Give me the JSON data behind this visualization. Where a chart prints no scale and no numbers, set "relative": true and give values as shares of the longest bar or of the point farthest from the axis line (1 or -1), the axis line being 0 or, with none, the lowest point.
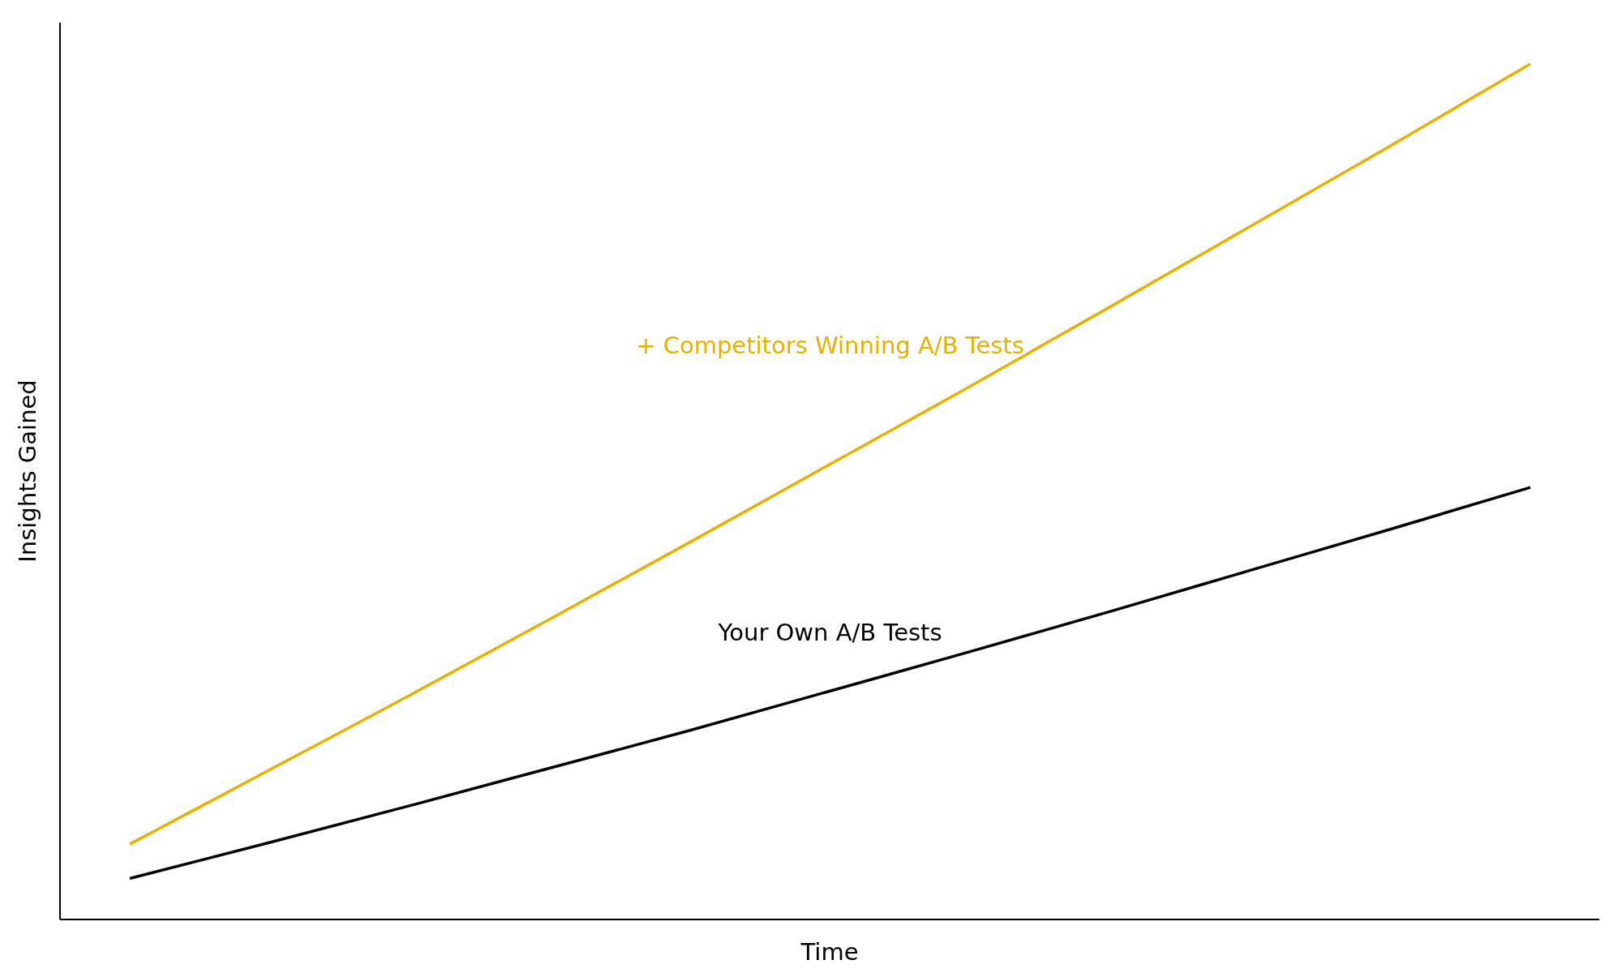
{
  "chart_data": {
    "type": "line",
    "relative": true,
    "xlabel": "Time",
    "ylabel": "Insights Gained",
    "categories": [
      null,
      null,
      null,
      null,
      null,
      null,
      null,
      null,
      null,
      null,
      null
    ],
    "series": [
      {
        "name": "+ Competitors Winning A/B Tests",
        "color": "#e8b000",
        "values": [
          0.088,
          0.175,
          0.262,
          0.351,
          0.441,
          0.532,
          0.623,
          0.716,
          0.81,
          0.904,
          1
        ]
      },
      {
        "name": "Your Own A/B Tests",
        "color": "#000000",
        "values": [
          0.048,
          0.09,
          0.133,
          0.177,
          0.221,
          0.267,
          0.313,
          0.36,
          0.408,
          0.456,
          0.505
        ]
      }
    ],
    "grid": false,
    "marker": "none",
    "line_style": "solid"
  }
}
